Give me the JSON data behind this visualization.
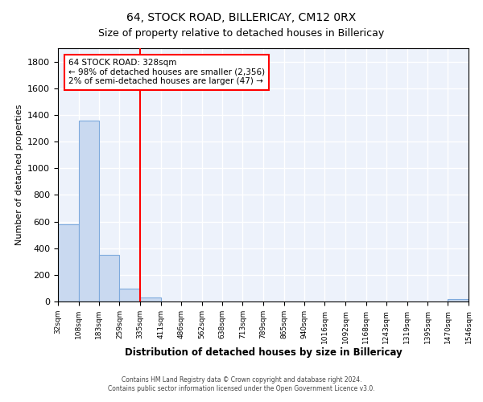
{
  "title": "64, STOCK ROAD, BILLERICAY, CM12 0RX",
  "subtitle": "Size of property relative to detached houses in Billericay",
  "xlabel": "Distribution of detached houses by size in Billericay",
  "ylabel": "Number of detached properties",
  "bar_color": "#c9d9f0",
  "bar_edge_color": "#7eaadd",
  "background_color": "#edf2fb",
  "grid_color": "#ffffff",
  "bin_edges": [
    32,
    108,
    183,
    259,
    335,
    411,
    486,
    562,
    638,
    713,
    789,
    865,
    940,
    1016,
    1092,
    1168,
    1243,
    1319,
    1395,
    1470,
    1546
  ],
  "bar_heights": [
    580,
    1355,
    350,
    95,
    30,
    0,
    0,
    0,
    0,
    0,
    0,
    0,
    0,
    0,
    0,
    0,
    0,
    0,
    0,
    20
  ],
  "red_line_x": 335,
  "ylim": [
    0,
    1900
  ],
  "annotation_text": "64 STOCK ROAD: 328sqm\n← 98% of detached houses are smaller (2,356)\n2% of semi-detached houses are larger (47) →",
  "footnote1": "Contains HM Land Registry data © Crown copyright and database right 2024.",
  "footnote2": "Contains public sector information licensed under the Open Government Licence v3.0.",
  "tick_labels": [
    "32sqm",
    "108sqm",
    "183sqm",
    "259sqm",
    "335sqm",
    "411sqm",
    "486sqm",
    "562sqm",
    "638sqm",
    "713sqm",
    "789sqm",
    "865sqm",
    "940sqm",
    "1016sqm",
    "1092sqm",
    "1168sqm",
    "1243sqm",
    "1319sqm",
    "1395sqm",
    "1470sqm",
    "1546sqm"
  ],
  "yticks": [
    0,
    200,
    400,
    600,
    800,
    1000,
    1200,
    1400,
    1600,
    1800
  ]
}
